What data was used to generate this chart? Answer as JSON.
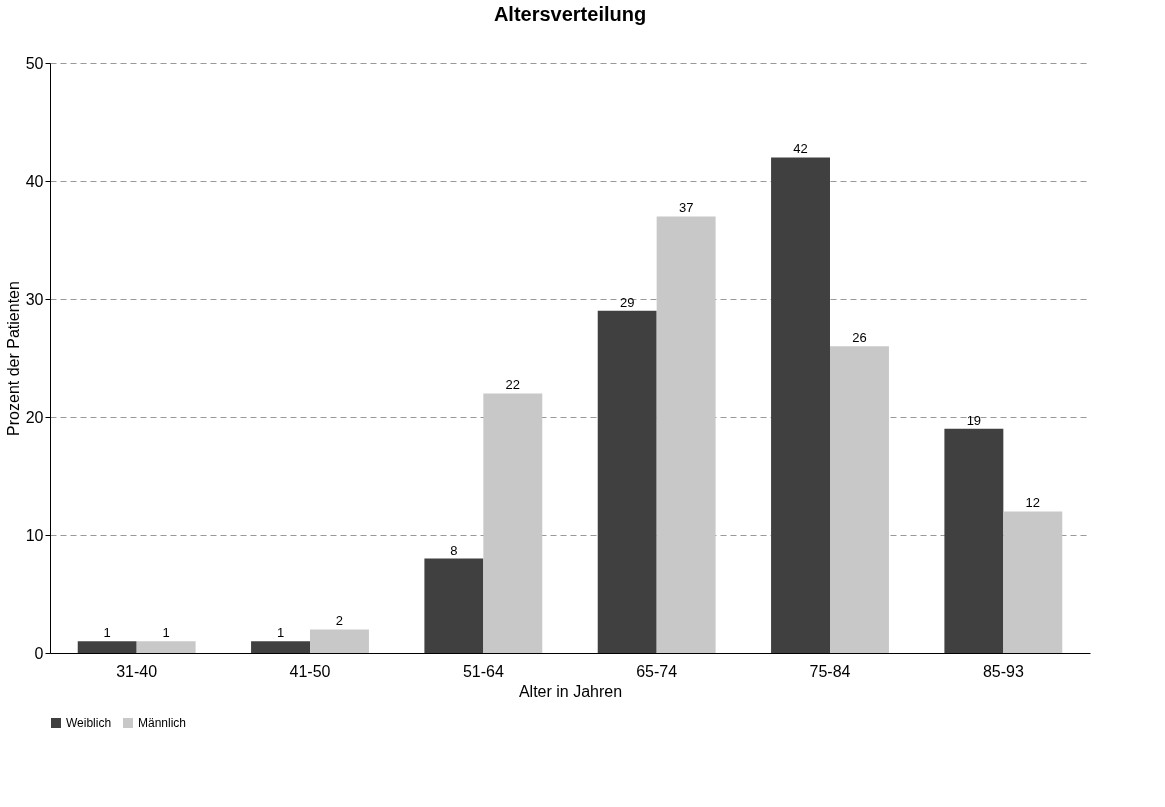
{
  "chart_data": {
    "type": "bar",
    "title": "Altersverteilung",
    "xlabel": "Alter in Jahren",
    "ylabel": "Prozent der Patienten",
    "categories": [
      "31-40",
      "41-50",
      "51-64",
      "65-74",
      "75-84",
      "85-93"
    ],
    "series": [
      {
        "name": "Weiblich",
        "color": "#404040",
        "values": [
          1,
          1,
          8,
          29,
          42,
          19
        ]
      },
      {
        "name": "Männlich",
        "color": "#c8c8c8",
        "values": [
          1,
          2,
          22,
          37,
          26,
          12
        ]
      }
    ],
    "ylim": [
      0,
      50
    ],
    "yticks": [
      0,
      10,
      20,
      30,
      40,
      50
    ],
    "grid": "y",
    "legend": "bottom",
    "data_labels": true
  }
}
